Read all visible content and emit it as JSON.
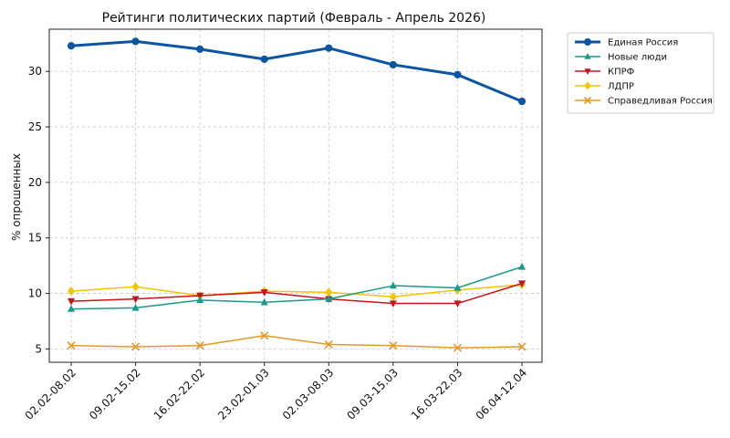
{
  "chart_data": {
    "type": "line",
    "title": "Рейтинги политических партий (Февраль - Апрель 2026)",
    "xlabel": "",
    "ylabel": "% опрошенных",
    "categories": [
      "02.02-08.02",
      "09.02-15.02",
      "16.02-22.02",
      "23.02-01.03",
      "02.03-08.03",
      "09.03-15.03",
      "16.03-22.03",
      "06.04-12.04"
    ],
    "ylim": [
      3.8,
      33.8
    ],
    "yticks": [
      5,
      10,
      15,
      20,
      25,
      30
    ],
    "grid": true,
    "legend_position": "top-right, outside plot",
    "series": [
      {
        "name": "Единая Россия",
        "color": "#0b55a3",
        "marker": "circle",
        "values": [
          32.3,
          32.7,
          32.0,
          31.1,
          32.1,
          30.6,
          29.7,
          27.3
        ]
      },
      {
        "name": "Новые люди",
        "color": "#1a9a8a",
        "marker": "triangle-up",
        "values": [
          8.6,
          8.7,
          9.4,
          9.2,
          9.5,
          10.7,
          10.5,
          12.4
        ]
      },
      {
        "name": "КПРФ",
        "color": "#c9141b",
        "marker": "triangle-down",
        "values": [
          9.3,
          9.5,
          9.8,
          10.1,
          9.5,
          9.1,
          9.1,
          10.9
        ]
      },
      {
        "name": "ЛДПР",
        "color": "#f5c400",
        "marker": "diamond",
        "values": [
          10.2,
          10.6,
          9.8,
          10.2,
          10.1,
          9.7,
          10.3,
          10.8
        ]
      },
      {
        "name": "Справедливая Россия",
        "color": "#e39a2a",
        "marker": "x",
        "values": [
          5.3,
          5.2,
          5.3,
          6.2,
          5.4,
          5.3,
          5.1,
          5.2
        ]
      }
    ]
  }
}
